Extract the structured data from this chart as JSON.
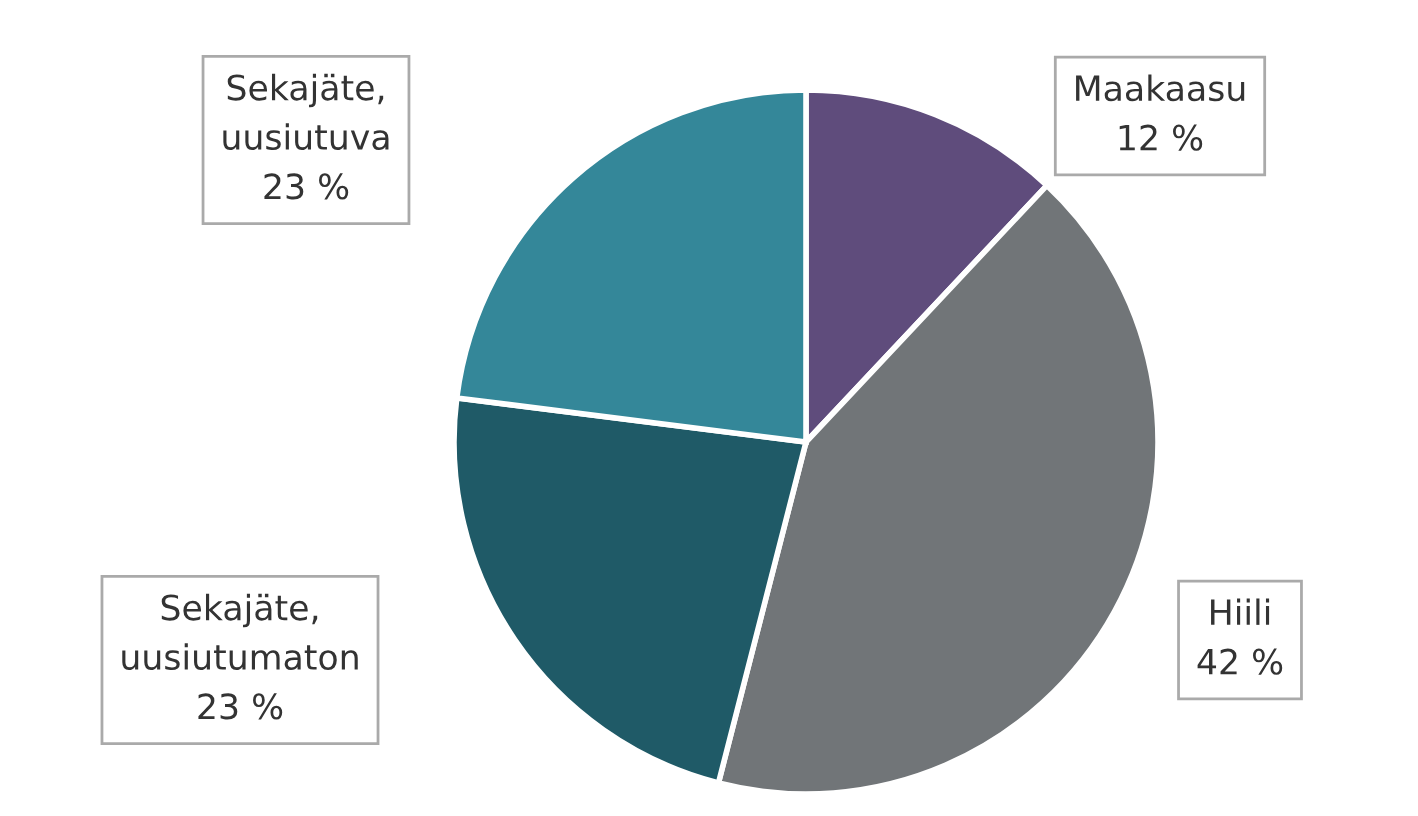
{
  "chart_data": {
    "type": "pie",
    "categories": [
      "Maakaasu",
      "Hiili",
      "Sekajäte,\nuusiutumaton",
      "Sekajäte,\nuusiutuva"
    ],
    "values": [
      12,
      42,
      23,
      23
    ],
    "value_labels": [
      "12 %",
      "42 %",
      "23 %",
      "23 %"
    ],
    "colors": [
      "#5f4c7c",
      "#717578",
      "#1f5a67",
      "#348799"
    ]
  }
}
